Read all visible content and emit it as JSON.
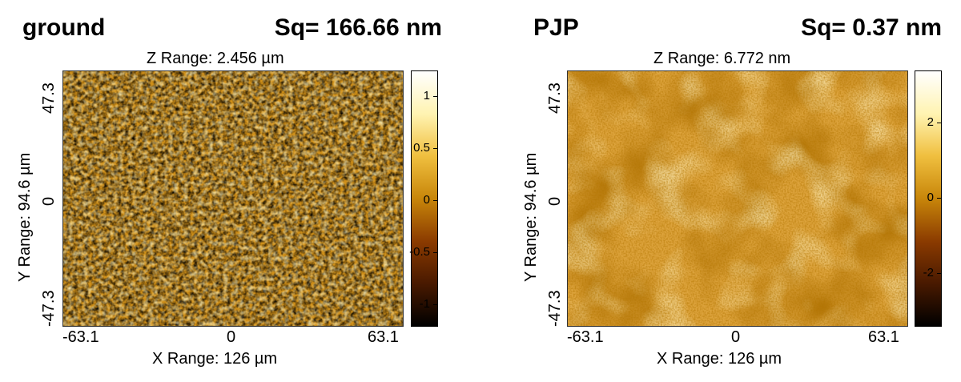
{
  "panels": [
    {
      "title": "ground",
      "sq": "Sq= 166.66 nm",
      "z_range": "Z Range:  2.456 µm",
      "y_label": "Y Range:  94.6 µm",
      "x_label": "X Range:   126 µm",
      "x_ticks": [
        "-63.1",
        "0",
        "63.1"
      ],
      "y_ticks": [
        "47.3",
        "0",
        "-47.3"
      ],
      "colorbar_ticks": [
        "1",
        "0.5",
        "0",
        "-0.5",
        "-1"
      ],
      "colorbar_range": [
        -1.2,
        1.25
      ]
    },
    {
      "title": "PJP",
      "sq": "Sq= 0.37 nm",
      "z_range": "Z Range:  6.772 nm",
      "y_label": "Y Range:  94.6 µm",
      "x_label": "X Range:   126 µm",
      "x_ticks": [
        "-63.1",
        "0",
        "63.1"
      ],
      "y_ticks": [
        "47.3",
        "0",
        "-47.3"
      ],
      "colorbar_ticks": [
        "2",
        "0",
        "-2"
      ],
      "colorbar_range": [
        -3.4,
        3.4
      ]
    }
  ],
  "colormap": [
    "#000000",
    "#4a1a00",
    "#8a3a00",
    "#c8860a",
    "#f0c040",
    "#fff3b0",
    "#ffffff"
  ]
}
